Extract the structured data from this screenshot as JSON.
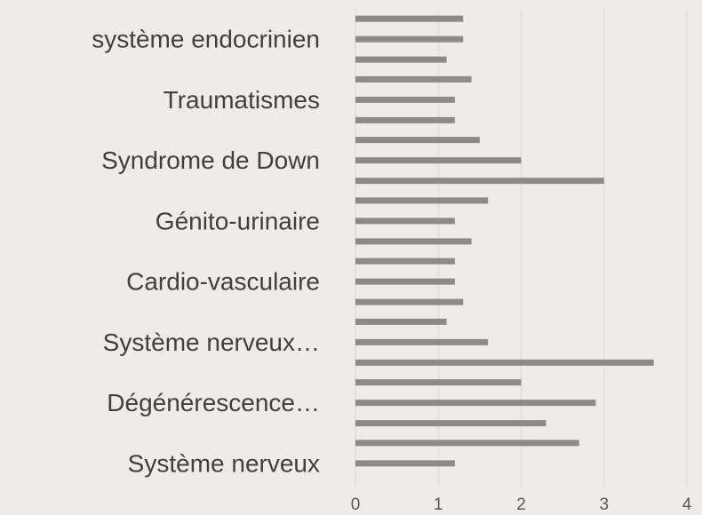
{
  "chart_data": {
    "type": "hbar",
    "categories": [
      "système endocrinien",
      "Traumatismes",
      "Syndrome de Down",
      "Génito-urinaire",
      "Cardio-vasculaire",
      "Système nerveux…",
      "Dégénérescence…",
      "Système nerveux"
    ],
    "series": [
      {
        "color": "#8c8b84",
        "values": [
          1.3,
          1.4,
          1.5,
          1.6,
          1.2,
          1.1,
          2.0,
          2.7
        ]
      },
      {
        "color": "#8c8b84",
        "values": [
          1.3,
          1.2,
          2.0,
          1.2,
          1.2,
          1.6,
          2.9,
          1.2
        ]
      },
      {
        "color": "#8c8b84",
        "values": [
          1.1,
          1.2,
          3.0,
          1.4,
          1.3,
          3.6,
          2.3,
          null
        ]
      }
    ],
    "xlim": [
      0,
      4
    ],
    "xticks": [
      0,
      1,
      2,
      3,
      4
    ],
    "grid": true
  }
}
